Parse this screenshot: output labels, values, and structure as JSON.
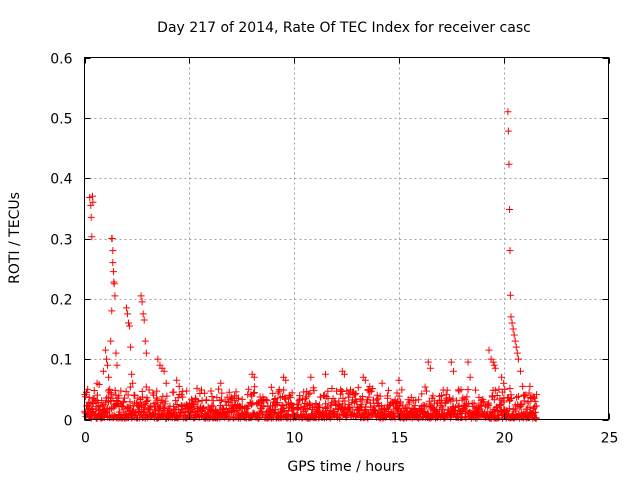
{
  "chart_data": {
    "type": "scatter",
    "title": "Day 217 of 2014, Rate Of TEC Index for receiver casc",
    "xlabel": "GPS time / hours",
    "ylabel": "ROTI / TECUs",
    "xlim": [
      0,
      25
    ],
    "ylim": [
      0,
      0.6
    ],
    "xticks": [
      0,
      5,
      10,
      15,
      20,
      25
    ],
    "yticks": [
      0,
      0.1,
      0.2,
      0.3,
      0.4,
      0.5,
      0.6
    ],
    "xtick_labels": [
      "0",
      "5",
      "10",
      "15",
      "20",
      "25"
    ],
    "ytick_labels": [
      "0",
      "0.1",
      "0.2",
      "0.3",
      "0.4",
      "0.5",
      "0.6"
    ],
    "grid": true,
    "marker": "+",
    "color": "#ff0000",
    "series": [
      {
        "name": "ROTI",
        "x": [
          0.25,
          0.3,
          0.32,
          0.35,
          0.38,
          0.4,
          0.1,
          0.15,
          0.6,
          0.7,
          0.9,
          1.0,
          1.05,
          1.1,
          1.15,
          1.2,
          1.25,
          1.3,
          1.3,
          1.32,
          1.35,
          1.35,
          1.38,
          1.4,
          1.42,
          1.45,
          1.5,
          1.55,
          2.0,
          2.05,
          2.1,
          2.15,
          2.2,
          2.25,
          2.3,
          2.7,
          2.75,
          2.8,
          2.85,
          2.9,
          2.95,
          3.5,
          3.6,
          3.7,
          3.8,
          3.9,
          4.4,
          6.5,
          8.0,
          8.1,
          9.5,
          9.6,
          10.8,
          11.5,
          12.3,
          12.4,
          13.3,
          13.4,
          14.2,
          15.0,
          16.4,
          16.5,
          17.5,
          17.6,
          18.3,
          18.4,
          19.3,
          19.4,
          19.5,
          19.55,
          19.6,
          19.9,
          20.0,
          20.05,
          20.2,
          20.22,
          20.25,
          20.28,
          20.3,
          20.32,
          20.35,
          20.4,
          20.45,
          20.5,
          20.55,
          20.6,
          20.65,
          20.7,
          20.8,
          21.0,
          21.3,
          21.5
        ],
        "y": [
          0.368,
          0.355,
          0.335,
          0.303,
          0.37,
          0.36,
          0.045,
          0.05,
          0.06,
          0.058,
          0.08,
          0.115,
          0.1,
          0.09,
          0.07,
          0.05,
          0.13,
          0.18,
          0.3,
          0.3,
          0.28,
          0.26,
          0.245,
          0.228,
          0.225,
          0.205,
          0.11,
          0.09,
          0.185,
          0.175,
          0.16,
          0.155,
          0.12,
          0.075,
          0.06,
          0.205,
          0.195,
          0.175,
          0.165,
          0.13,
          0.11,
          0.1,
          0.09,
          0.085,
          0.08,
          0.06,
          0.065,
          0.06,
          0.075,
          0.07,
          0.07,
          0.065,
          0.07,
          0.075,
          0.08,
          0.075,
          0.07,
          0.065,
          0.06,
          0.065,
          0.095,
          0.085,
          0.095,
          0.08,
          0.095,
          0.07,
          0.115,
          0.1,
          0.095,
          0.09,
          0.085,
          0.07,
          0.06,
          0.05,
          0.51,
          0.478,
          0.423,
          0.348,
          0.28,
          0.206,
          0.17,
          0.16,
          0.15,
          0.14,
          0.13,
          0.12,
          0.11,
          0.1,
          0.08,
          0.04,
          0.035,
          0.03
        ]
      }
    ],
    "baseline_band": {
      "x_range": [
        0,
        21.6
      ],
      "y_range": [
        0,
        0.045
      ],
      "note": "dense cluster of points near zero across the whole day"
    }
  }
}
